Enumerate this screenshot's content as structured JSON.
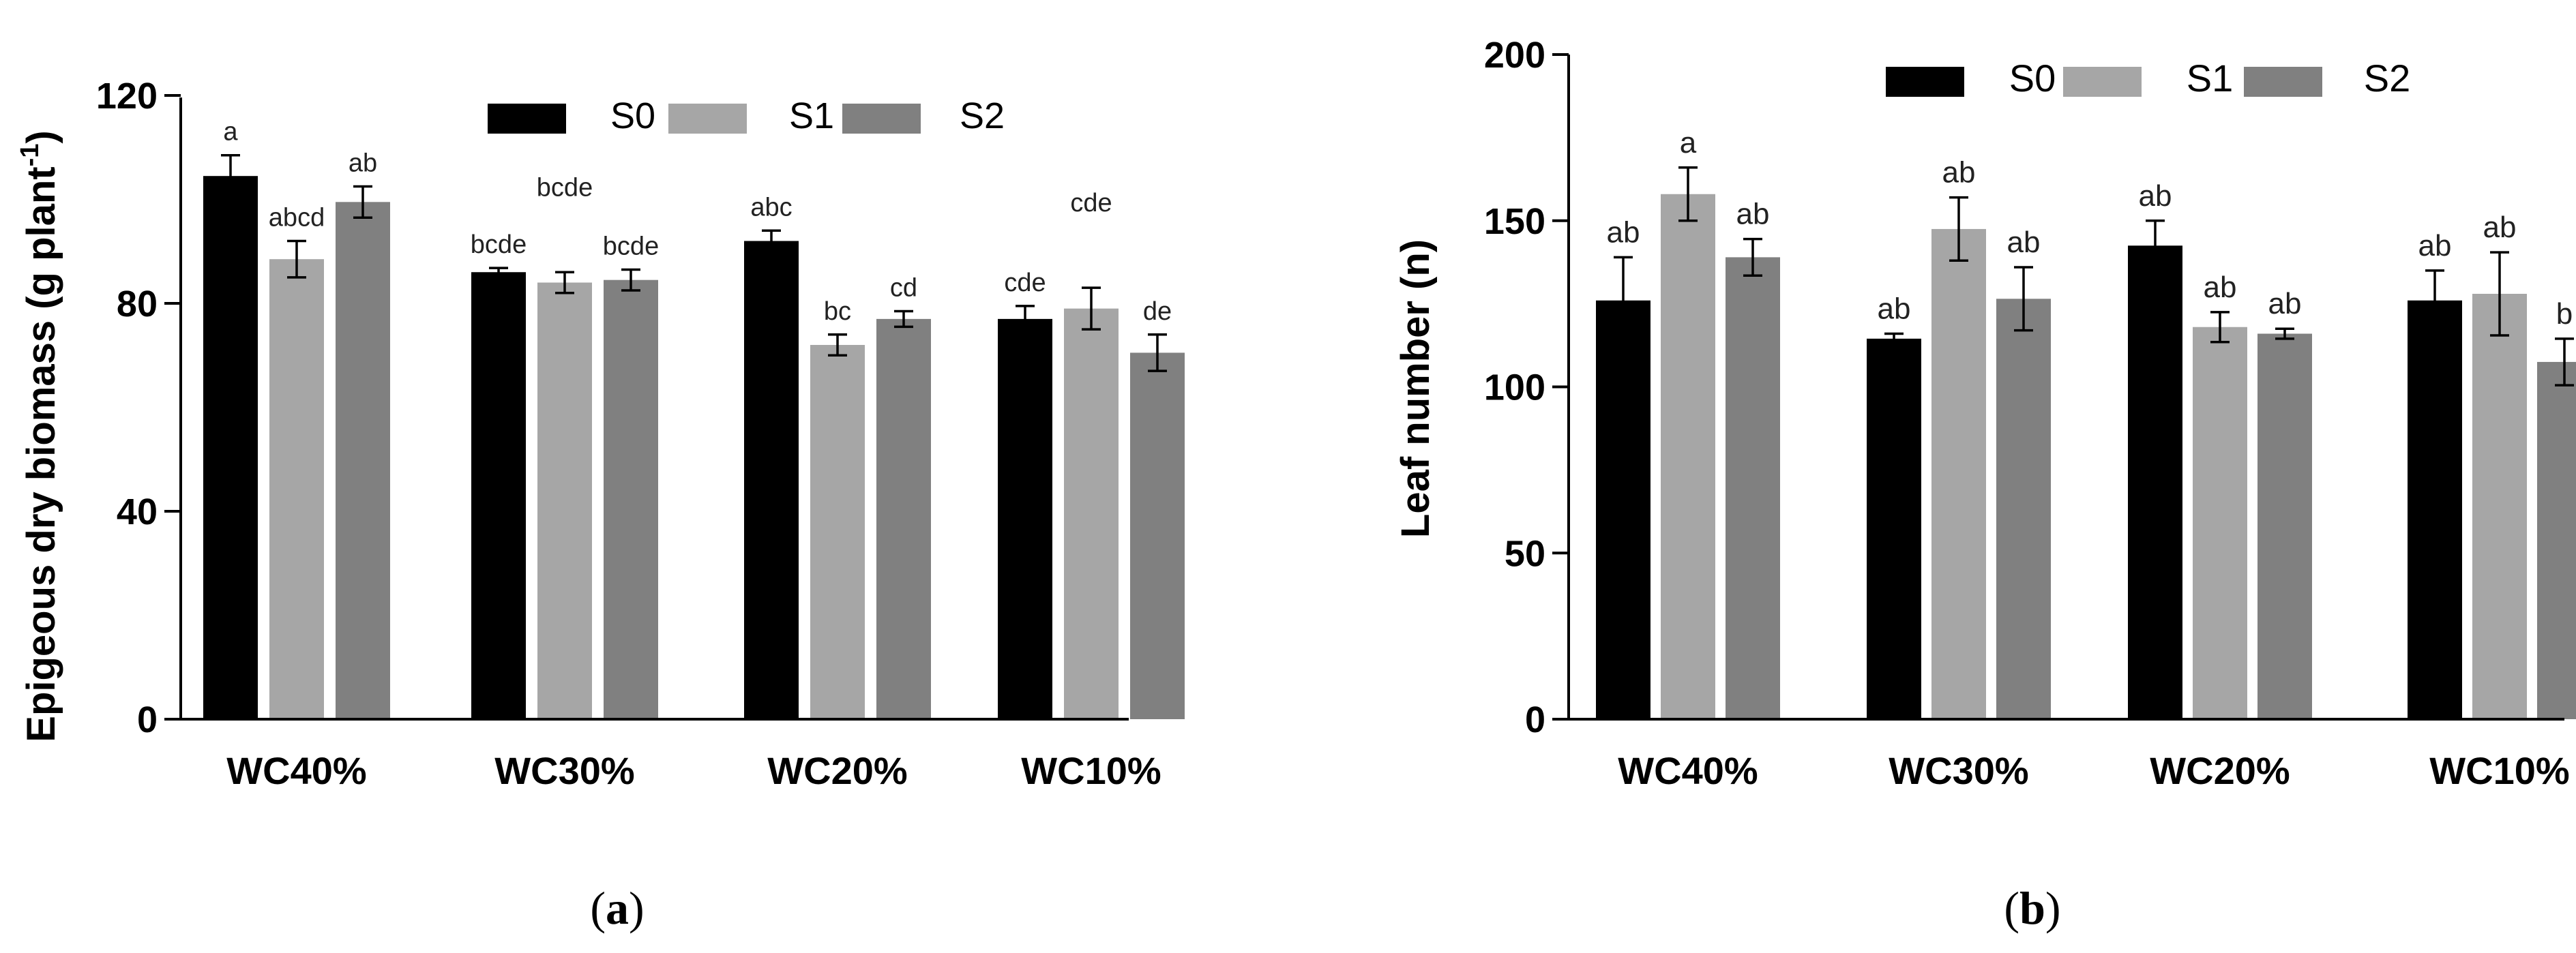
{
  "figure": {
    "panel_a_label": "(a)",
    "panel_a_letter": "a",
    "panel_b_label": "(b)",
    "panel_b_letter": "b"
  },
  "colors": {
    "S0": "#000000",
    "S1": "#a6a6a6",
    "S2": "#808080"
  },
  "chart_data": [
    {
      "id": "a",
      "type": "bar",
      "title": "",
      "xlabel": "",
      "ylabel": "Epigeous dry biomass (g plant-1)",
      "ylabel_main": "Epigeous dry biomass (g plant",
      "ylabel_sup": "-1",
      "ylabel_close": ")",
      "ylim": [
        0,
        120
      ],
      "yticks": [
        0,
        40,
        80,
        120
      ],
      "categories": [
        "WC40%",
        "WC30%",
        "WC20%",
        "WC10%"
      ],
      "legend": [
        "S0",
        "S1",
        "S2"
      ],
      "legend_position": "top-right",
      "series": [
        {
          "name": "S0",
          "values": [
            104.5,
            86.0,
            92.0,
            77.0
          ],
          "errors": [
            4.0,
            0.8,
            2.0,
            2.5
          ],
          "labels": [
            "a",
            "bcde",
            "abc",
            "cde"
          ]
        },
        {
          "name": "S1",
          "values": [
            88.5,
            84.0,
            72.0,
            79.0
          ],
          "errors": [
            3.5,
            2.0,
            2.0,
            4.0
          ],
          "labels": [
            "abcd",
            "bcde",
            "bc",
            "cde"
          ]
        },
        {
          "name": "S2",
          "values": [
            99.5,
            84.5,
            77.0,
            70.5
          ],
          "errors": [
            3.0,
            2.0,
            1.5,
            3.5
          ],
          "labels": [
            "ab",
            "bcde",
            "cd",
            "de"
          ]
        }
      ]
    },
    {
      "id": "b",
      "type": "bar",
      "title": "",
      "xlabel": "",
      "ylabel": "Leaf number (n)",
      "ylim": [
        0,
        200
      ],
      "yticks": [
        0,
        50,
        100,
        150,
        200
      ],
      "categories": [
        "WC40%",
        "WC30%",
        "WC20%",
        "WC10%"
      ],
      "legend": [
        "S0",
        "S1",
        "S2"
      ],
      "legend_position": "top-right",
      "series": [
        {
          "name": "S0",
          "values": [
            126,
            114.5,
            142.5,
            126
          ],
          "errors": [
            13,
            1.5,
            7.5,
            9
          ],
          "labels": [
            "ab",
            "ab",
            "ab",
            "ab"
          ]
        },
        {
          "name": "S1",
          "values": [
            158,
            147.5,
            118,
            128
          ],
          "errors": [
            8,
            9.5,
            4.5,
            12.5
          ],
          "labels": [
            "a",
            "ab",
            "ab",
            "ab"
          ]
        },
        {
          "name": "S2",
          "values": [
            139,
            126.5,
            116,
            107.5
          ],
          "errors": [
            5.5,
            9.5,
            1.5,
            7
          ],
          "labels": [
            "ab",
            "ab",
            "ab",
            "b"
          ]
        }
      ]
    }
  ]
}
